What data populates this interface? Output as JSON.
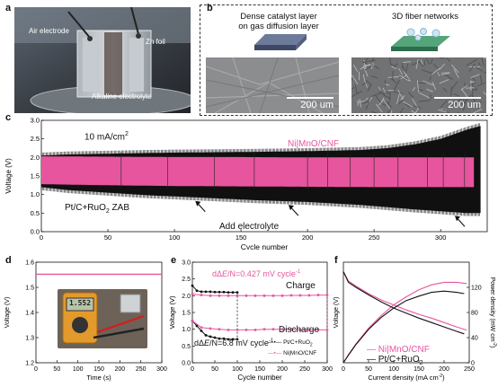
{
  "panel_a": {
    "letter": "a",
    "labels": {
      "air": "Air electrode",
      "zn": "Zn foil",
      "electrolyte": "Alkaline electrolyte"
    }
  },
  "panel_b": {
    "letter": "b",
    "left_title": [
      "Dense catalyst layer",
      "on gas diffusion layer"
    ],
    "right_title": "3D fiber networks",
    "scale_left": "200 um",
    "scale_right": "200 um"
  },
  "colors": {
    "pink": "#e7559e",
    "black": "#111111"
  },
  "chart_data": [
    {
      "panel": "c",
      "type": "line",
      "xlabel": "Cycle number",
      "ylabel": "Voltage (V)",
      "xlim": [
        0,
        335
      ],
      "ylim": [
        0,
        3.0
      ],
      "xticks": [
        0,
        50,
        100,
        150,
        200,
        250,
        300
      ],
      "yticks": [
        "0.0",
        "0.5",
        "1.0",
        "1.5",
        "2.0",
        "2.5",
        "3.0"
      ],
      "annotations": {
        "current": "10 mA/cm",
        "current_sup": "2",
        "add": "Add electrolyte"
      },
      "add_electrolyte_cycles": [
        115,
        185,
        280,
        310
      ],
      "series": [
        {
          "name": "Pt/C+RuO",
          "name_sub": "2",
          "name_tail": " ZAB",
          "color": "#111111",
          "x": [
            0,
            20,
            50,
            80,
            100,
            130,
            160,
            200,
            240,
            260,
            280,
            300,
            320,
            330
          ],
          "charge": [
            2.05,
            2.08,
            2.1,
            2.12,
            2.13,
            2.14,
            2.15,
            2.17,
            2.2,
            2.25,
            2.35,
            2.5,
            2.75,
            2.85
          ],
          "discharge": [
            1.2,
            1.12,
            1.05,
            0.98,
            0.95,
            0.9,
            0.85,
            0.8,
            0.72,
            0.66,
            0.6,
            0.55,
            0.5,
            0.5
          ]
        },
        {
          "name": "Ni|MnO/CNF",
          "color": "#e7559e",
          "x": [
            0,
            50,
            100,
            150,
            200,
            250,
            300,
            325
          ],
          "charge": [
            2.03,
            2.02,
            2.01,
            2.01,
            2.0,
            2.0,
            2.0,
            2.0
          ],
          "discharge": [
            1.28,
            1.25,
            1.23,
            1.22,
            1.21,
            1.2,
            1.2,
            1.2
          ]
        }
      ]
    },
    {
      "panel": "d",
      "type": "line",
      "xlabel": "Time (s)",
      "ylabel": "Voltage (V)",
      "xlim": [
        0,
        300
      ],
      "ylim": [
        1.2,
        1.6
      ],
      "xticks": [
        0,
        50,
        100,
        150,
        200,
        250,
        300
      ],
      "yticks": [
        "1.2",
        "1.3",
        "1.4",
        "1.5",
        "1.6"
      ],
      "meter_reading": "1.552",
      "series": [
        {
          "color": "#e7559e",
          "x": [
            0,
            300
          ],
          "y": [
            1.552,
            1.552
          ]
        }
      ]
    },
    {
      "panel": "e",
      "type": "line",
      "xlabel": "Cycle number",
      "ylabel": "Voltage (V)",
      "xlim": [
        0,
        300
      ],
      "ylim": [
        0,
        3.0
      ],
      "xticks": [
        0,
        50,
        100,
        150,
        200,
        250,
        300
      ],
      "yticks": [
        "0.0",
        "0.5",
        "1.0",
        "1.5",
        "2.0",
        "2.5",
        "3.0"
      ],
      "charge_label": "Charge",
      "discharge_label": "Discharge",
      "rate_pink_prefix": "dΔ",
      "rate_pink_suffix": "/N=0.427 mV cycle",
      "rate_pink_sup": "-1",
      "rate_black_prefix": "dΔ",
      "rate_black_suffix": "/N=6.8 mV cycle",
      "rate_black_sup": "-1",
      "rate_var": "E",
      "series": [
        {
          "name": "Pt/C+RuO",
          "name_sub": "2",
          "color": "#111111",
          "x": [
            0,
            10,
            20,
            30,
            40,
            50,
            60,
            70,
            80,
            90,
            100
          ],
          "charge": [
            2.3,
            2.15,
            2.12,
            2.12,
            2.12,
            2.11,
            2.11,
            2.11,
            2.1,
            2.1,
            2.1
          ],
          "discharge": [
            1.25,
            1.1,
            0.95,
            0.82,
            0.78,
            0.75,
            0.72,
            0.72,
            0.7,
            0.7,
            0.7
          ]
        },
        {
          "name": "Ni|MnO/CNF",
          "color": "#e7559e",
          "x": [
            0,
            20,
            40,
            60,
            80,
            100,
            120,
            140,
            160,
            180,
            200,
            220,
            240,
            260,
            280,
            300
          ],
          "charge": [
            2.05,
            2.02,
            2.0,
            2.0,
            2.0,
            2.0,
            2.0,
            2.0,
            2.0,
            2.0,
            2.0,
            2.01,
            2.01,
            2.01,
            2.02,
            2.02
          ],
          "discharge": [
            1.25,
            1.05,
            1.02,
            1.0,
            0.98,
            0.98,
            0.98,
            0.98,
            1.0,
            1.0,
            1.0,
            1.0,
            0.98,
            0.98,
            0.98,
            0.98
          ]
        }
      ]
    },
    {
      "panel": "f",
      "type": "line",
      "xlabel": "Current density (mA cm",
      "xlabel_sup": "-2",
      "xlabel_tail": ")",
      "ylabel": "Voltage (V)",
      "ylabel_right": "Power density (mW cm",
      "ylabel_right_sup": "-2",
      "ylabel_right_tail": ")",
      "xlim": [
        0,
        250
      ],
      "ylim": [
        0,
        1.6
      ],
      "ylim_right": [
        0,
        160
      ],
      "xticks": [
        0,
        50,
        100,
        150,
        200,
        250
      ],
      "yticks_right": [
        0,
        40,
        80,
        120
      ],
      "series": [
        {
          "name": "Ni|MnO/CNF",
          "color": "#e7559e",
          "x": [
            0,
            10,
            25,
            50,
            75,
            100,
            125,
            150,
            175,
            200,
            225,
            245
          ],
          "voltage": [
            1.45,
            1.3,
            1.22,
            1.1,
            1.0,
            0.92,
            0.84,
            0.77,
            0.71,
            0.64,
            0.57,
            0.52
          ],
          "power": [
            0,
            13,
            30,
            55,
            75,
            92,
            105,
            116,
            124,
            128,
            128,
            126
          ]
        },
        {
          "name": "Pt/C+RuO",
          "name_sub": "2",
          "color": "#111111",
          "x": [
            0,
            10,
            25,
            50,
            75,
            100,
            125,
            150,
            175,
            200,
            225,
            240
          ],
          "voltage": [
            1.45,
            1.28,
            1.2,
            1.08,
            0.97,
            0.87,
            0.79,
            0.71,
            0.64,
            0.57,
            0.5,
            0.46
          ],
          "power": [
            0,
            12,
            29,
            53,
            72,
            87,
            99,
            106,
            112,
            114,
            112,
            110
          ]
        }
      ]
    }
  ]
}
